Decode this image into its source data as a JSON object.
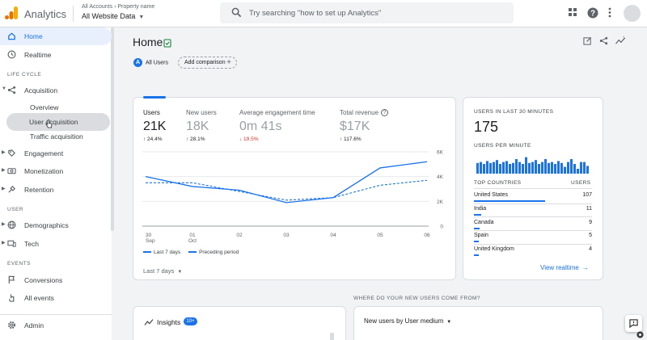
{
  "app": {
    "title": "Analytics"
  },
  "account": {
    "breadcrumb": "All Accounts › Property name",
    "property": "All Website Data"
  },
  "search": {
    "placeholder": "Try searching \"how to set up Analytics\""
  },
  "colors": {
    "accent": "#1a73e8",
    "logo_orange": "#f9ab00",
    "logo_dark": "#e37400"
  },
  "sidebar": {
    "home": "Home",
    "realtime": "Realtime",
    "section_lifecycle": "LIFE CYCLE",
    "acquisition": "Acquisition",
    "overview": "Overview",
    "user_acquisition": "User acquisition",
    "traffic_acquisition": "Traffic acquisition",
    "engagement": "Engagement",
    "monetization": "Monetization",
    "retention": "Retention",
    "section_user": "USER",
    "demographics": "Demographics",
    "tech": "Tech",
    "section_events": "EVENTS",
    "conversions": "Conversions",
    "all_events": "All events",
    "admin": "Admin"
  },
  "page": {
    "title": "Home"
  },
  "comparison": {
    "segment_letter": "A",
    "segment": "All Users",
    "add_label": "Add comparison"
  },
  "metrics": [
    {
      "label": "Users",
      "value": "21K",
      "delta": "↑ 24.4%"
    },
    {
      "label": "New users",
      "value": "18K",
      "delta": "↑ 28.1%"
    },
    {
      "label": "Average engagement time",
      "value": "0m 41s",
      "delta": "↓ 19.5%"
    },
    {
      "label": "Total revenue",
      "value": "$17K",
      "delta": "↑ 117.6%"
    }
  ],
  "chart_data": {
    "type": "line",
    "x": [
      "30 Sep",
      "01 Oct",
      "02",
      "03",
      "04",
      "05",
      "06"
    ],
    "ylim": [
      0,
      6000
    ],
    "yticks": [
      "6K",
      "4K",
      "2K",
      "0"
    ],
    "series": [
      {
        "name": "Last 7 days",
        "values": [
          4000,
          3200,
          2900,
          1900,
          2300,
          4700,
          5200
        ]
      },
      {
        "name": "Preceding period",
        "values": [
          3500,
          3500,
          2800,
          2100,
          2300,
          3300,
          3700
        ]
      }
    ]
  },
  "legend": {
    "current": "Last 7 days",
    "previous": "Preceding period"
  },
  "date_range": "Last 7 days",
  "realtime": {
    "title": "USERS IN LAST 30 MINUTES",
    "value": "175",
    "per_minute": "USERS PER MINUTE",
    "per_minute_values": [
      0.55,
      0.6,
      0.5,
      0.65,
      0.55,
      0.6,
      0.7,
      0.5,
      0.6,
      0.65,
      0.5,
      0.55,
      0.75,
      0.6,
      0.5,
      0.85,
      0.55,
      0.6,
      0.7,
      0.5,
      0.6,
      0.75,
      0.55,
      0.6,
      0.5,
      0.65,
      0.55,
      0.35,
      0.6,
      0.75,
      0.5,
      0.25,
      0.6,
      0.6,
      0.4
    ],
    "col_country": "TOP COUNTRIES",
    "col_users": "USERS",
    "countries": [
      {
        "name": "United States",
        "users": "107",
        "share": 1.0
      },
      {
        "name": "India",
        "users": "11",
        "share": 0.1
      },
      {
        "name": "Canada",
        "users": "9",
        "share": 0.085
      },
      {
        "name": "Spain",
        "users": "5",
        "share": 0.05
      },
      {
        "name": "United Kingdom",
        "users": "4",
        "share": 0.04
      }
    ],
    "view_link": "View realtime"
  },
  "where_title": "WHERE DO YOUR NEW USERS COME FROM?",
  "insights": {
    "label": "Insights",
    "badge": "10+"
  },
  "new_users_by": "New users by User medium"
}
